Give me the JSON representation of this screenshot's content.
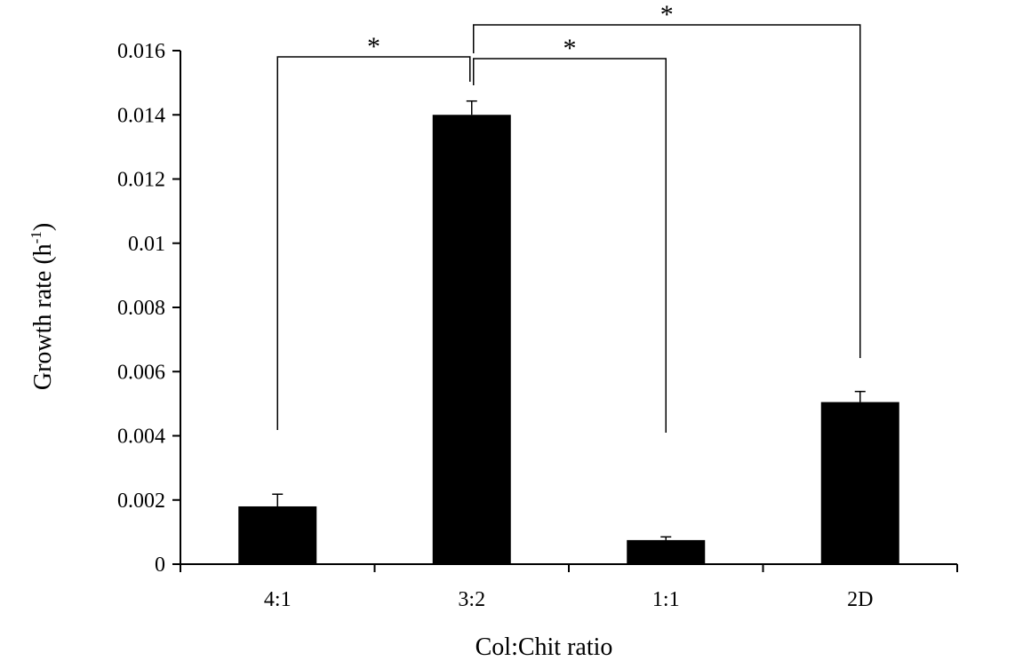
{
  "chart_data": {
    "type": "bar",
    "title": "",
    "xlabel": "Col:Chit ratio",
    "ylabel": {
      "main": "Growth rate (h",
      "sup": "-1",
      "close": ")"
    },
    "categories": [
      "4:1",
      "3:2",
      "1:1",
      "2D"
    ],
    "values": [
      0.0018,
      0.014,
      0.00075,
      0.00505
    ],
    "errors": [
      0.00038,
      0.00043,
      0.0001,
      0.00033
    ],
    "ylim": [
      0,
      0.016
    ],
    "yticks": [
      0,
      0.002,
      0.004,
      0.006,
      0.008,
      0.01,
      0.012,
      0.014,
      0.016
    ],
    "ytick_labels": [
      "0",
      "0.002",
      "0.004",
      "0.006",
      "0.008",
      "0.01",
      "0.012",
      "0.014",
      "0.016"
    ],
    "bar_color": "#000000",
    "grid": false,
    "legend": "none",
    "significance": [
      {
        "from": "4:1",
        "to": "3:2",
        "label": "*"
      },
      {
        "from": "3:2",
        "to": "1:1",
        "label": "*"
      },
      {
        "from": "3:2",
        "to": "2D",
        "label": "*"
      }
    ]
  }
}
